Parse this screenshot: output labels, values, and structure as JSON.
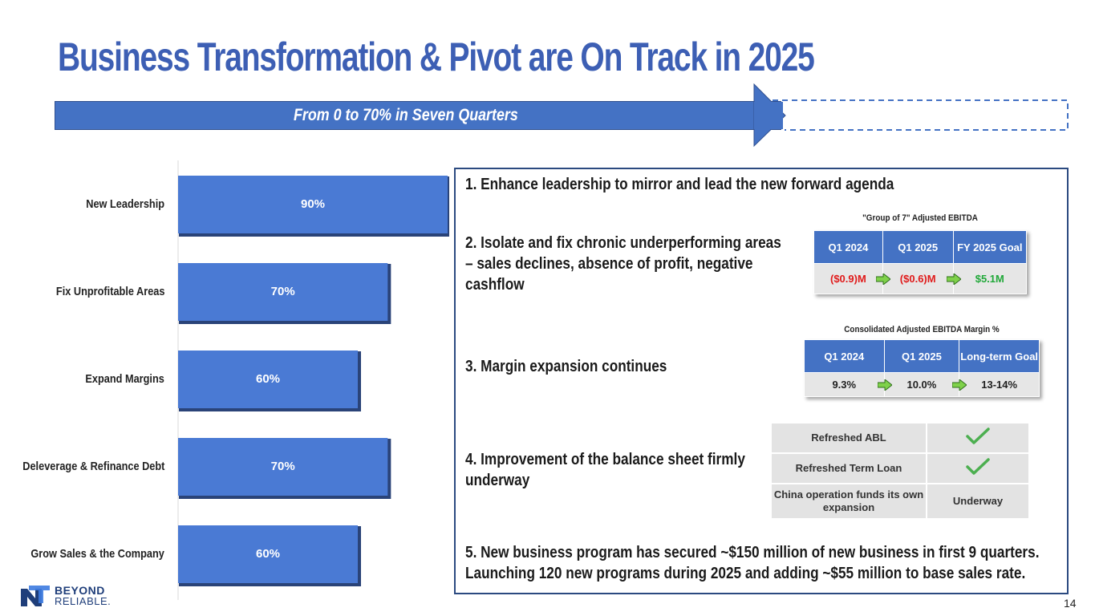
{
  "title": "Business Transformation & Pivot are On Track in 2025",
  "banner": "From 0 to 70% in Seven Quarters",
  "chart_data": {
    "type": "bar",
    "orientation": "horizontal",
    "categories": [
      "New Leadership",
      "Fix Unprofitable Areas",
      "Expand Margins",
      "Deleverage & Refinance Debt",
      "Grow Sales & the Company"
    ],
    "values": [
      90,
      70,
      60,
      70,
      60
    ],
    "value_labels": [
      "90%",
      "70%",
      "60%",
      "70%",
      "60%"
    ],
    "xlim": [
      0,
      90
    ],
    "bar_color": "#4a7ad4",
    "grid": false
  },
  "items": [
    "1. Enhance leadership to mirror and lead the new forward agenda",
    "2. Isolate and fix chronic underperforming areas – sales declines, absence of profit, negative cashflow",
    "3. Margin expansion continues",
    "4. Improvement of the balance sheet firmly underway",
    "5. New business program has secured ~$150 million of new business in first 9 quarters. Launching 120 new programs during 2025 and adding ~$55 million to base sales rate."
  ],
  "ebitda_table": {
    "title": "\"Group of 7\" Adjusted  EBITDA",
    "headers": [
      "Q1 2024",
      "Q1 2025",
      "FY 2025 Goal"
    ],
    "values": [
      "($0.9)M",
      "($0.6)M",
      "$5.1M"
    ]
  },
  "margin_table": {
    "title": "Consolidated Adjusted EBITDA Margin %",
    "headers": [
      "Q1 2024",
      "Q1 2025",
      "Long-term Goal"
    ],
    "values": [
      "9.3%",
      "10.0%",
      "13-14%"
    ]
  },
  "status_table": [
    {
      "label": "Refreshed ABL",
      "status": "",
      "icon": "check-icon"
    },
    {
      "label": "Refreshed Term Loan",
      "status": "",
      "icon": "check-icon"
    },
    {
      "label": "China operation funds its own expansion",
      "status": "Underway",
      "icon": ""
    }
  ],
  "logo": {
    "line1": "BEYOND",
    "line2": "RELIABLE."
  },
  "page_number": "14",
  "colors": {
    "title": "#3d5fb4",
    "bar": "#4a7ad4",
    "table_header": "#4472c4",
    "negative": "#e01b1b",
    "positive": "#22a83a",
    "check": "#4caf50"
  }
}
